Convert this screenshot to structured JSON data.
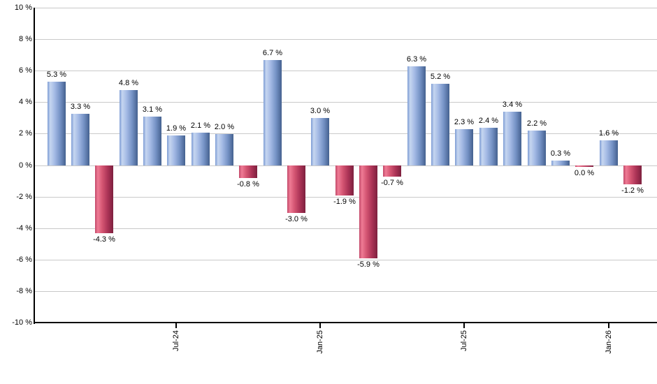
{
  "chart_data": {
    "type": "bar",
    "title": "",
    "xlabel": "",
    "ylabel": "",
    "ylim": [
      -10,
      10
    ],
    "y_tick_step": 2,
    "grid": true,
    "legend": false,
    "y_tick_labels": [
      "10 %",
      "8 %",
      "6 %",
      "4 %",
      "2 %",
      "0 %",
      "-2 %",
      "-4 %",
      "-6 %",
      "-8 %",
      "-10 %"
    ],
    "x_tick_labels": [
      {
        "index": 5,
        "label": "Jul-24"
      },
      {
        "index": 11,
        "label": "Jan-25"
      },
      {
        "index": 17,
        "label": "Jul-25"
      },
      {
        "index": 23,
        "label": "Jan-26"
      }
    ],
    "values": [
      5.3,
      3.3,
      -4.3,
      4.8,
      3.1,
      1.9,
      2.1,
      2.0,
      -0.8,
      6.7,
      -3.0,
      3.0,
      -1.9,
      -5.9,
      -0.7,
      6.3,
      5.2,
      2.3,
      2.4,
      3.4,
      2.2,
      0.3,
      0.0,
      1.6,
      -1.2
    ],
    "bar_labels": [
      "5.3 %",
      "3.3 %",
      "-4.3 %",
      "4.8 %",
      "3.1 %",
      "1.9 %",
      "2.1 %",
      "2.0 %",
      "-0.8 %",
      "6.7 %",
      "-3.0 %",
      "3.0 %",
      "-1.9 %",
      "-5.9 %",
      "-0.7 %",
      "6.3 %",
      "5.2 %",
      "2.3 %",
      "2.4 %",
      "3.4 %",
      "2.2 %",
      "0.3 %",
      "0.0 %",
      "1.6 %",
      "-1.2 %"
    ],
    "zero_rendered_as_negative_sliver_index": 22,
    "colors": {
      "positive_base": "#7f9fd4",
      "negative_base": "#c23a58",
      "positive_gradient": [
        "#7d9cd4 0%",
        "#c6d6f0 15%",
        "#a3b9e4 40%",
        "#7491c4 70%",
        "#44618f 100%"
      ],
      "negative_gradient": [
        "#c24868 0%",
        "#ee7b95 15%",
        "#d45572 40%",
        "#ab3356 70%",
        "#7d203e 100%"
      ],
      "gridline": "#c9c9c9",
      "axis": "#000000",
      "label_text": "#000000",
      "background": "#ffffff"
    }
  }
}
